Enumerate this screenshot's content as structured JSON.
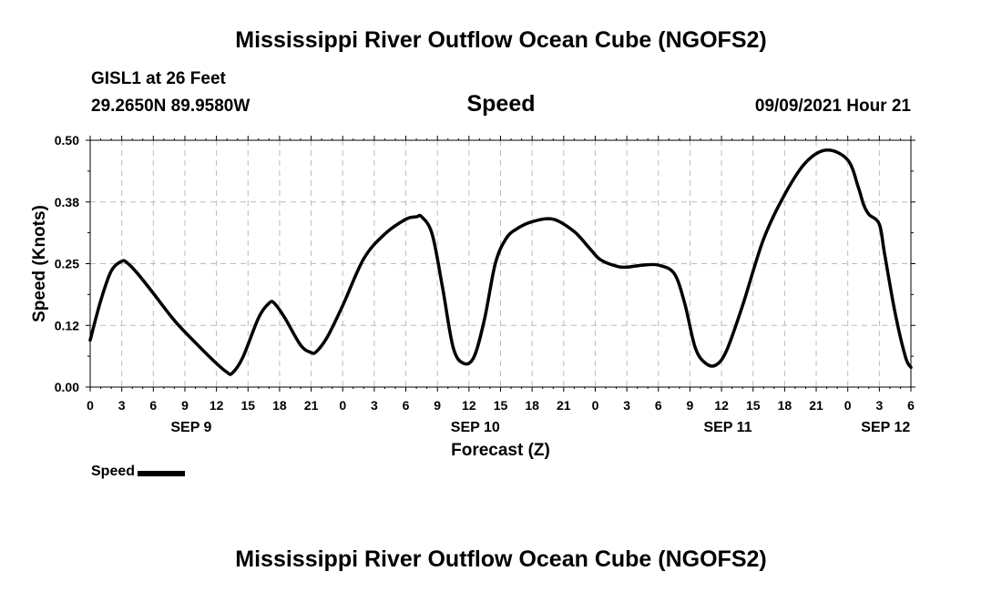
{
  "header": {
    "title": "Mississippi River Outflow Ocean Cube (NGOFS2)",
    "station": "GISL1 at 26 Feet",
    "coords": "29.2650N  89.9580W",
    "variable": "Speed",
    "timestamp": "09/09/2021 Hour 21"
  },
  "footer": {
    "title": "Mississippi River Outflow Ocean Cube (NGOFS2)"
  },
  "legend": {
    "label": "Speed"
  },
  "chart_data": {
    "type": "line",
    "title": "Speed",
    "xlabel": "Forecast (Z)",
    "ylabel": "Speed (Knots)",
    "xlim": [
      0,
      78
    ],
    "ylim": [
      0,
      0.5
    ],
    "yticks": [
      "0.00",
      "0.12",
      "0.25",
      "0.38",
      "0.50"
    ],
    "ytick_values": [
      0,
      0.125,
      0.25,
      0.375,
      0.5
    ],
    "xticks": [
      "0",
      "3",
      "6",
      "9",
      "12",
      "15",
      "18",
      "21",
      "0",
      "3",
      "6",
      "9",
      "12",
      "15",
      "18",
      "21",
      "0",
      "3",
      "6",
      "9",
      "12",
      "15",
      "18",
      "21",
      "0",
      "3",
      "6"
    ],
    "date_labels": [
      {
        "label": "SEP 9",
        "x": 9.6
      },
      {
        "label": "SEP 10",
        "x": 36.6
      },
      {
        "label": "SEP 11",
        "x": 60.6
      },
      {
        "label": "SEP 12",
        "x": 75.6
      }
    ],
    "grid": true,
    "series": [
      {
        "name": "Speed",
        "color": "#000000",
        "x": [
          0,
          1,
          2,
          3,
          3.5,
          4.5,
          6,
          8,
          10,
          12,
          13,
          13.5,
          14.5,
          16,
          17,
          17.5,
          18.5,
          20,
          21,
          21.5,
          22.5,
          24,
          26,
          28,
          30,
          31,
          31.5,
          32.5,
          33.5,
          34.5,
          35.5,
          36.5,
          37.5,
          38.5,
          39.5,
          40.5,
          42,
          44,
          46,
          47.5,
          48.5,
          50,
          51,
          52.5,
          54,
          55.5,
          56.5,
          57.5,
          58.5,
          59.5,
          60.5,
          62,
          64,
          66,
          68,
          70,
          72,
          73,
          73.5,
          74,
          75,
          75.5,
          76.5,
          77.5,
          78
        ],
        "values": [
          0.095,
          0.175,
          0.235,
          0.255,
          0.252,
          0.23,
          0.19,
          0.135,
          0.09,
          0.048,
          0.03,
          0.028,
          0.06,
          0.14,
          0.17,
          0.17,
          0.14,
          0.085,
          0.07,
          0.072,
          0.1,
          0.165,
          0.26,
          0.31,
          0.34,
          0.345,
          0.345,
          0.31,
          0.2,
          0.08,
          0.048,
          0.062,
          0.14,
          0.25,
          0.3,
          0.32,
          0.335,
          0.34,
          0.315,
          0.28,
          0.258,
          0.245,
          0.243,
          0.247,
          0.247,
          0.23,
          0.17,
          0.08,
          0.048,
          0.045,
          0.075,
          0.165,
          0.3,
          0.39,
          0.455,
          0.48,
          0.46,
          0.405,
          0.37,
          0.35,
          0.33,
          0.27,
          0.15,
          0.06,
          0.04
        ]
      }
    ]
  }
}
